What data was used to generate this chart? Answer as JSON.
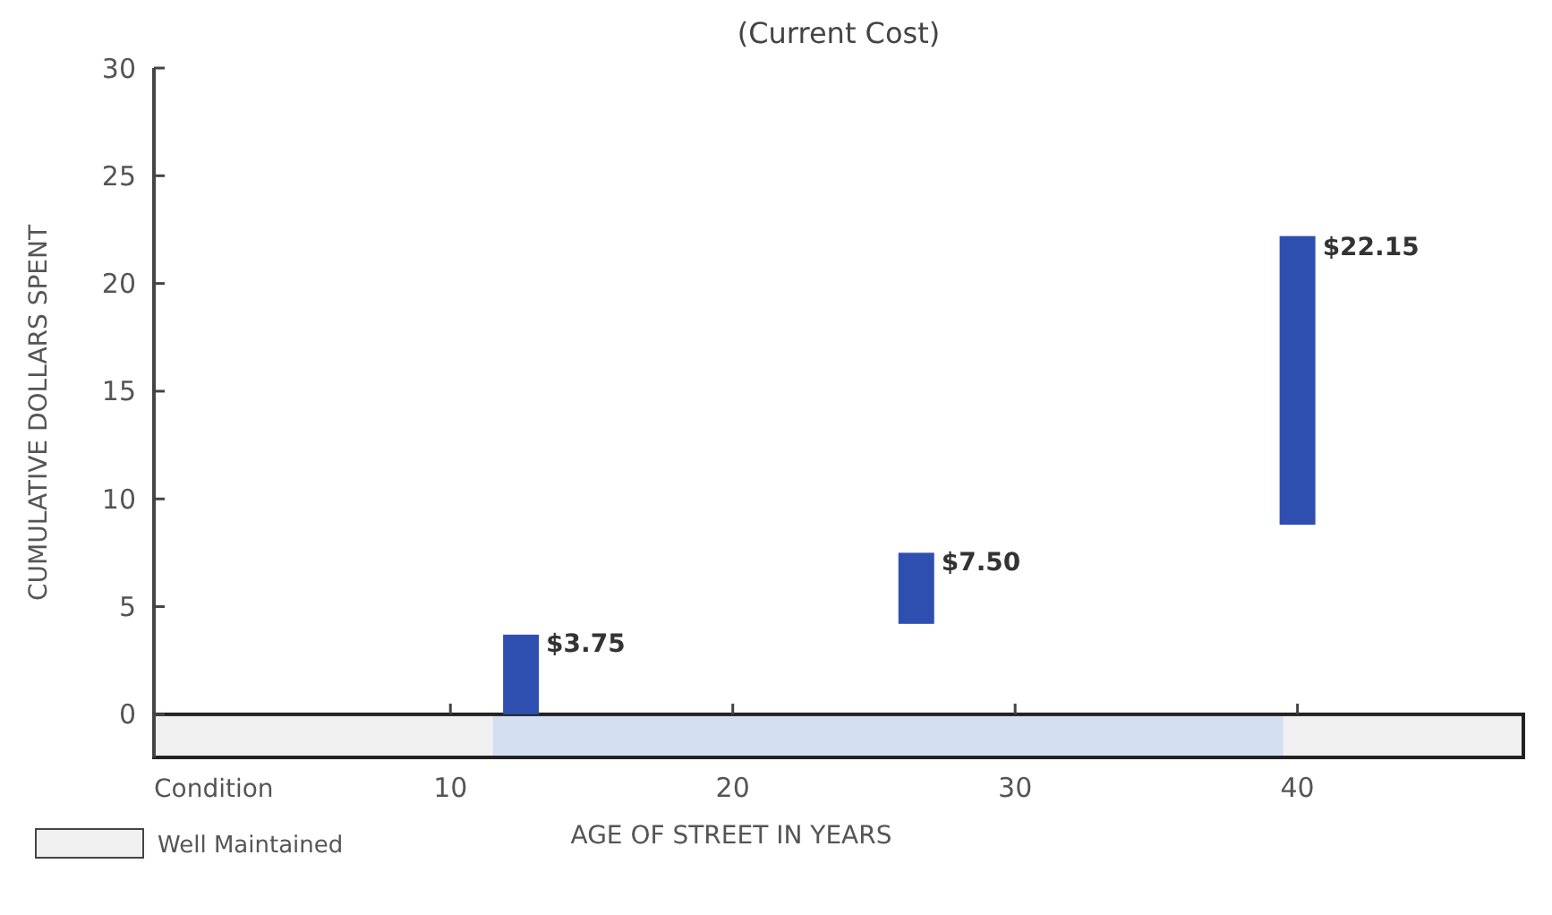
{
  "chart_data": {
    "type": "bar",
    "title": "(Current Cost)",
    "xlabel": "AGE OF STREET IN YEARS",
    "ylabel": "CUMULATIVE DOLLARS SPENT",
    "x": [
      12.5,
      26.5,
      40
    ],
    "values": [
      3.7,
      3.3,
      13.4
    ],
    "base": [
      0,
      4.2,
      8.8
    ],
    "color": "#2f4fb0",
    "xlim": [
      -0.5,
      48
    ],
    "xticks": [
      10,
      20,
      30,
      40
    ],
    "ylim": [
      -2,
      30
    ],
    "yticks": [
      0,
      5,
      10,
      15,
      20,
      25,
      30
    ],
    "bands": [
      {
        "axis": "x",
        "from": -0.5,
        "to": 11.5,
        "label": "Well Maintained",
        "color": "#f0f0f0"
      },
      {
        "axis": "x",
        "from": 11.5,
        "to": 39.5,
        "color": "#d5dff2"
      },
      {
        "axis": "x",
        "from": 39.5,
        "to": 48,
        "color": "#f0f0f0"
      }
    ],
    "annotations": [
      "Condition",
      {
        "text": "$3.75",
        "x": 12.5,
        "y": 3.75
      },
      {
        "text": "$7.50",
        "x": 26.5,
        "y": 7.5
      },
      {
        "text": "$22.15",
        "x": 40,
        "y": 22.15
      }
    ],
    "legend": "bottom left",
    "grid": false
  }
}
